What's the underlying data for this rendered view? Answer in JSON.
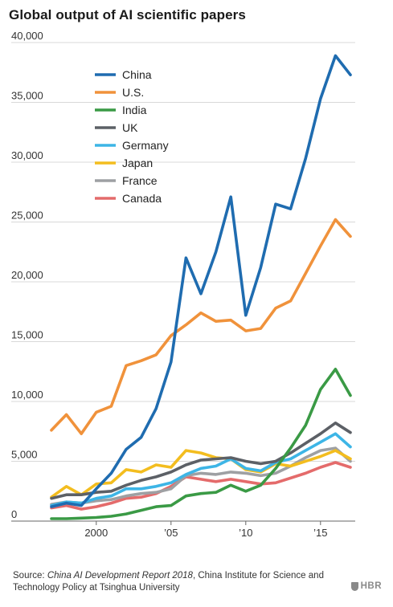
{
  "title": "Global output of AI scientific papers",
  "source": {
    "prefix": "Source: ",
    "report": "China AI Development Report 2018",
    "suffix": ", China Institute for Science and Technology Policy at Tsinghua University"
  },
  "brand": "HBR",
  "chart_data": {
    "type": "line",
    "title": "Global output of AI scientific papers",
    "xlabel": "",
    "ylabel": "",
    "ylim": [
      0,
      40000
    ],
    "xlim": [
      1997,
      2017
    ],
    "grid": "horizontal",
    "legend_placement": "top-left",
    "y_ticks": [
      {
        "value": 0,
        "label": "0"
      },
      {
        "value": 5000,
        "label": "5,000"
      },
      {
        "value": 10000,
        "label": "10,000"
      },
      {
        "value": 15000,
        "label": "15,000"
      },
      {
        "value": 20000,
        "label": "20,000"
      },
      {
        "value": 25000,
        "label": "25,000"
      },
      {
        "value": 30000,
        "label": "30,000"
      },
      {
        "value": 35000,
        "label": "35,000"
      },
      {
        "value": 40000,
        "label": "40,000"
      }
    ],
    "x_ticks": [
      {
        "value": 2000,
        "label": "2000"
      },
      {
        "value": 2005,
        "label": "’05"
      },
      {
        "value": 2010,
        "label": "’10"
      },
      {
        "value": 2015,
        "label": "’15"
      }
    ],
    "x": [
      1997,
      1998,
      1999,
      2000,
      2001,
      2002,
      2003,
      2004,
      2005,
      2006,
      2007,
      2008,
      2009,
      2010,
      2011,
      2012,
      2013,
      2014,
      2015,
      2016,
      2017
    ],
    "series": [
      {
        "name": "China",
        "color": "#1f6cb0",
        "values": [
          1200,
          1500,
          1300,
          2700,
          4000,
          6000,
          7000,
          9400,
          13300,
          22000,
          19000,
          22500,
          27100,
          17200,
          21200,
          26500,
          26100,
          30300,
          35300,
          38900,
          37300
        ]
      },
      {
        "name": "U.S.",
        "color": "#f0923b",
        "values": [
          7600,
          8900,
          7300,
          9100,
          9600,
          13000,
          13400,
          13900,
          15500,
          16400,
          17400,
          16700,
          16800,
          15900,
          16100,
          17800,
          18400,
          20700,
          23000,
          25200,
          23800
        ]
      },
      {
        "name": "India",
        "color": "#3a9a45",
        "values": [
          200,
          200,
          250,
          300,
          400,
          600,
          900,
          1200,
          1300,
          2100,
          2300,
          2400,
          3000,
          2500,
          3000,
          4400,
          6100,
          8000,
          11000,
          12700,
          10500
        ]
      },
      {
        "name": "UK",
        "color": "#5c6066",
        "values": [
          1900,
          2200,
          2200,
          2400,
          2500,
          3000,
          3400,
          3700,
          4100,
          4700,
          5100,
          5200,
          5300,
          5000,
          4800,
          5000,
          5700,
          6500,
          7300,
          8200,
          7400
        ]
      },
      {
        "name": "Germany",
        "color": "#3db5e6",
        "values": [
          1300,
          1600,
          1500,
          1900,
          2100,
          2700,
          2700,
          2900,
          3200,
          3900,
          4400,
          4600,
          5200,
          4400,
          4200,
          4900,
          5200,
          5900,
          6600,
          7300,
          6200
        ]
      },
      {
        "name": "Japan",
        "color": "#f3bd1f",
        "values": [
          2000,
          2900,
          2200,
          3100,
          3200,
          4300,
          4100,
          4700,
          4500,
          5900,
          5700,
          5300,
          5200,
          4300,
          4100,
          4800,
          4600,
          5000,
          5400,
          5900,
          5200
        ]
      },
      {
        "name": "France",
        "color": "#9ea0a3",
        "values": [
          1400,
          1600,
          1500,
          1700,
          1800,
          2100,
          2300,
          2400,
          2700,
          3800,
          4000,
          3900,
          4100,
          4000,
          3800,
          4000,
          4600,
          5300,
          5900,
          6100,
          5000
        ]
      },
      {
        "name": "Canada",
        "color": "#e46b6b",
        "values": [
          1100,
          1300,
          1000,
          1200,
          1500,
          1900,
          2000,
          2300,
          2900,
          3700,
          3500,
          3300,
          3500,
          3300,
          3100,
          3200,
          3600,
          4000,
          4500,
          4900,
          4500
        ]
      }
    ]
  }
}
